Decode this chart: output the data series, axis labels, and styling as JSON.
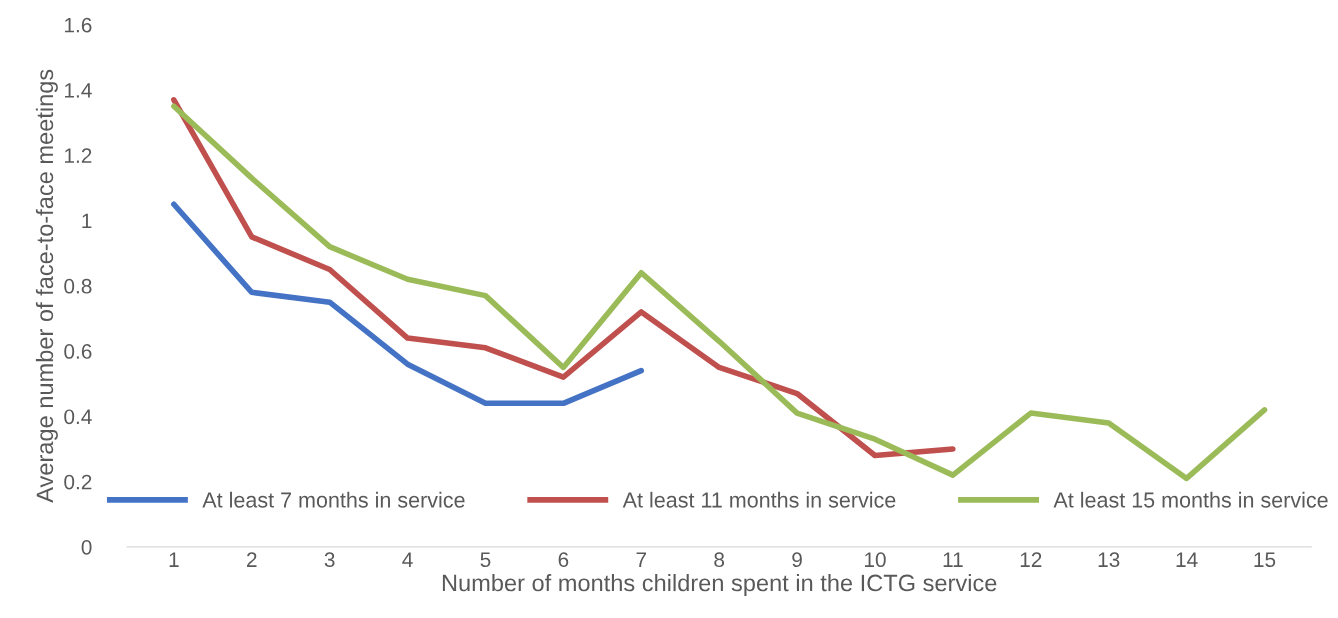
{
  "chart_data": {
    "type": "line",
    "xlabel": "Number of months children spent in the ICTG service",
    "ylabel": "Average number of face-to-face meetings",
    "categories": [
      "1",
      "2",
      "3",
      "4",
      "5",
      "6",
      "7",
      "8",
      "9",
      "10",
      "11",
      "12",
      "13",
      "14",
      "15"
    ],
    "series": [
      {
        "name": "At least 7 months in service",
        "color": "#4472c4",
        "values": [
          1.05,
          0.78,
          0.75,
          0.56,
          0.44,
          0.44,
          0.54,
          null,
          null,
          null,
          null,
          null,
          null,
          null,
          null
        ]
      },
      {
        "name": "At least 11 months in service",
        "color": "#c0504d",
        "values": [
          1.37,
          0.95,
          0.85,
          0.64,
          0.61,
          0.52,
          0.72,
          0.55,
          0.47,
          0.28,
          0.3,
          null,
          null,
          null,
          null
        ]
      },
      {
        "name": "At least 15 months in service",
        "color": "#9bbb59",
        "values": [
          1.35,
          1.13,
          0.92,
          0.82,
          0.77,
          0.55,
          0.84,
          0.63,
          0.41,
          0.33,
          0.22,
          0.41,
          0.38,
          0.21,
          0.42
        ]
      }
    ],
    "ylim": [
      0,
      1.6
    ],
    "yticks": [
      0,
      0.2,
      0.4,
      0.6,
      0.8,
      1,
      1.2,
      1.4,
      1.6
    ],
    "grid": false,
    "legend": "bottom",
    "marker": "none",
    "line_style": "solid"
  }
}
